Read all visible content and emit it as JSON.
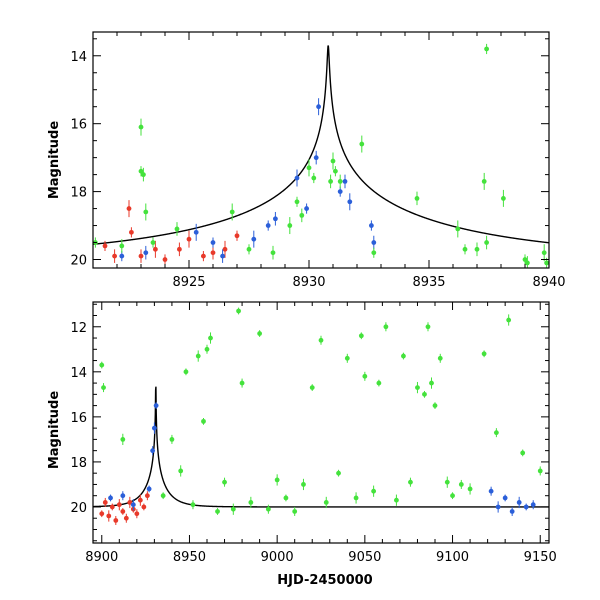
{
  "chart_data": [
    {
      "type": "scatter",
      "panel": "top",
      "title": "",
      "xlabel": "",
      "ylabel": "Magnitude",
      "xlim": [
        8921,
        8940
      ],
      "ylim": [
        20.25,
        13.3
      ],
      "y_inverted": true,
      "x_ticks": [
        8925,
        8930,
        8935,
        8940
      ],
      "y_ticks": [
        14,
        16,
        18,
        20
      ],
      "model_curve": {
        "name": "model",
        "t0": 8930.8,
        "peak_mag": 13.5,
        "baseline_mag": 20.0,
        "tE": 12,
        "u0": 0.003
      },
      "series": [
        {
          "name": "red",
          "color": "#e8392a",
          "points": [
            [
              8921.5,
              19.6
            ],
            [
              8921.9,
              19.9
            ],
            [
              8922.5,
              18.5
            ],
            [
              8922.6,
              19.2
            ],
            [
              8923.0,
              19.9
            ],
            [
              8923.6,
              19.7
            ],
            [
              8924.0,
              20.0
            ],
            [
              8924.6,
              19.7
            ],
            [
              8925.0,
              19.4
            ],
            [
              8925.6,
              19.9
            ],
            [
              8926.0,
              19.8
            ],
            [
              8926.5,
              19.7
            ],
            [
              8927.0,
              19.3
            ]
          ]
        },
        {
          "name": "blue",
          "color": "#2b5fd9",
          "points": [
            [
              8922.2,
              19.9
            ],
            [
              8923.2,
              19.8
            ],
            [
              8925.3,
              19.2
            ],
            [
              8926.0,
              19.5
            ],
            [
              8926.4,
              19.9
            ],
            [
              8927.7,
              19.4
            ],
            [
              8928.3,
              19.0
            ],
            [
              8928.6,
              18.8
            ],
            [
              8929.5,
              17.6
            ],
            [
              8929.9,
              18.5
            ],
            [
              8930.3,
              17.0
            ],
            [
              8930.4,
              15.5
            ],
            [
              8931.3,
              18.0
            ],
            [
              8931.5,
              17.7
            ],
            [
              8931.7,
              18.3
            ],
            [
              8932.6,
              19.0
            ],
            [
              8932.7,
              19.5
            ]
          ]
        },
        {
          "name": "green",
          "color": "#44e23c",
          "points": [
            [
              8921.1,
              19.5
            ],
            [
              8922.2,
              19.6
            ],
            [
              8923.0,
              16.1
            ],
            [
              8923.0,
              17.4
            ],
            [
              8923.1,
              17.5
            ],
            [
              8923.2,
              18.6
            ],
            [
              8923.5,
              19.5
            ],
            [
              8924.5,
              19.1
            ],
            [
              8926.8,
              18.6
            ],
            [
              8927.5,
              19.7
            ],
            [
              8928.5,
              19.8
            ],
            [
              8929.2,
              19.0
            ],
            [
              8929.5,
              18.3
            ],
            [
              8929.7,
              18.7
            ],
            [
              8930.0,
              17.3
            ],
            [
              8930.2,
              17.6
            ],
            [
              8930.9,
              17.7
            ],
            [
              8931.0,
              17.1
            ],
            [
              8931.1,
              17.4
            ],
            [
              8931.3,
              17.7
            ],
            [
              8932.2,
              16.6
            ],
            [
              8932.7,
              19.8
            ],
            [
              8934.5,
              18.2
            ],
            [
              8936.2,
              19.1
            ],
            [
              8936.5,
              19.7
            ],
            [
              8937.0,
              19.7
            ],
            [
              8937.3,
              17.7
            ],
            [
              8937.4,
              13.8
            ],
            [
              8937.4,
              19.5
            ],
            [
              8938.1,
              18.2
            ],
            [
              8939.0,
              20.0
            ],
            [
              8939.1,
              20.1
            ],
            [
              8939.8,
              19.8
            ],
            [
              8939.9,
              20.1
            ]
          ]
        }
      ]
    },
    {
      "type": "scatter",
      "panel": "bottom",
      "title": "",
      "xlabel": "HJD-2450000",
      "ylabel": "Magnitude",
      "xlim": [
        8895,
        9155
      ],
      "ylim": [
        21.6,
        10.9
      ],
      "y_inverted": true,
      "x_ticks": [
        8900,
        8950,
        9000,
        9050,
        9100,
        9150
      ],
      "y_ticks": [
        12,
        14,
        16,
        18,
        20
      ],
      "model_curve": {
        "name": "model",
        "t0": 8930.8,
        "peak_mag": 13.5,
        "baseline_mag": 20.0,
        "tE": 12,
        "u0": 0.003
      },
      "series": [
        {
          "name": "red",
          "color": "#e8392a",
          "points": [
            [
              8900,
              20.3
            ],
            [
              8902,
              19.8
            ],
            [
              8904,
              20.4
            ],
            [
              8906,
              20.0
            ],
            [
              8908,
              20.6
            ],
            [
              8910,
              19.9
            ],
            [
              8912,
              20.2
            ],
            [
              8914,
              20.5
            ],
            [
              8916,
              19.8
            ],
            [
              8918,
              20.1
            ],
            [
              8920,
              20.3
            ],
            [
              8922,
              19.7
            ],
            [
              8924,
              20.0
            ],
            [
              8926,
              19.5
            ]
          ]
        },
        {
          "name": "blue",
          "color": "#2b5fd9",
          "points": [
            [
              8905,
              19.6
            ],
            [
              8912,
              19.5
            ],
            [
              8918,
              19.9
            ],
            [
              8927,
              19.2
            ],
            [
              8929,
              17.5
            ],
            [
              8930,
              16.5
            ],
            [
              8931,
              15.5
            ],
            [
              9122,
              19.3
            ],
            [
              9126,
              20.0
            ],
            [
              9130,
              19.6
            ],
            [
              9134,
              20.2
            ],
            [
              9138,
              19.8
            ],
            [
              9142,
              20.0
            ],
            [
              9146,
              19.9
            ]
          ]
        },
        {
          "name": "green",
          "color": "#44e23c",
          "points": [
            [
              8900,
              13.7
            ],
            [
              8901,
              14.7
            ],
            [
              8912,
              17.0
            ],
            [
              8935,
              19.5
            ],
            [
              8940,
              17.0
            ],
            [
              8945,
              18.4
            ],
            [
              8948,
              14.0
            ],
            [
              8952,
              19.9
            ],
            [
              8955,
              13.3
            ],
            [
              8958,
              16.2
            ],
            [
              8960,
              13.0
            ],
            [
              8962,
              12.5
            ],
            [
              8966,
              20.2
            ],
            [
              8970,
              18.9
            ],
            [
              8975,
              20.1
            ],
            [
              8978,
              11.3
            ],
            [
              8980,
              14.5
            ],
            [
              8985,
              19.8
            ],
            [
              8990,
              12.3
            ],
            [
              8995,
              20.1
            ],
            [
              9000,
              18.8
            ],
            [
              9005,
              19.6
            ],
            [
              9010,
              20.2
            ],
            [
              9015,
              19.0
            ],
            [
              9020,
              14.7
            ],
            [
              9025,
              12.6
            ],
            [
              9028,
              19.8
            ],
            [
              9035,
              18.5
            ],
            [
              9040,
              13.4
            ],
            [
              9045,
              19.6
            ],
            [
              9048,
              12.4
            ],
            [
              9050,
              14.2
            ],
            [
              9055,
              19.3
            ],
            [
              9058,
              14.5
            ],
            [
              9062,
              12.0
            ],
            [
              9068,
              19.7
            ],
            [
              9072,
              13.3
            ],
            [
              9076,
              18.9
            ],
            [
              9080,
              14.7
            ],
            [
              9084,
              15.0
            ],
            [
              9086,
              12.0
            ],
            [
              9088,
              14.5
            ],
            [
              9090,
              15.5
            ],
            [
              9093,
              13.4
            ],
            [
              9097,
              18.9
            ],
            [
              9100,
              19.5
            ],
            [
              9105,
              19.0
            ],
            [
              9110,
              19.2
            ],
            [
              9118,
              13.2
            ],
            [
              9125,
              16.7
            ],
            [
              9132,
              11.7
            ],
            [
              9140,
              17.6
            ],
            [
              9150,
              18.4
            ]
          ]
        }
      ]
    }
  ]
}
